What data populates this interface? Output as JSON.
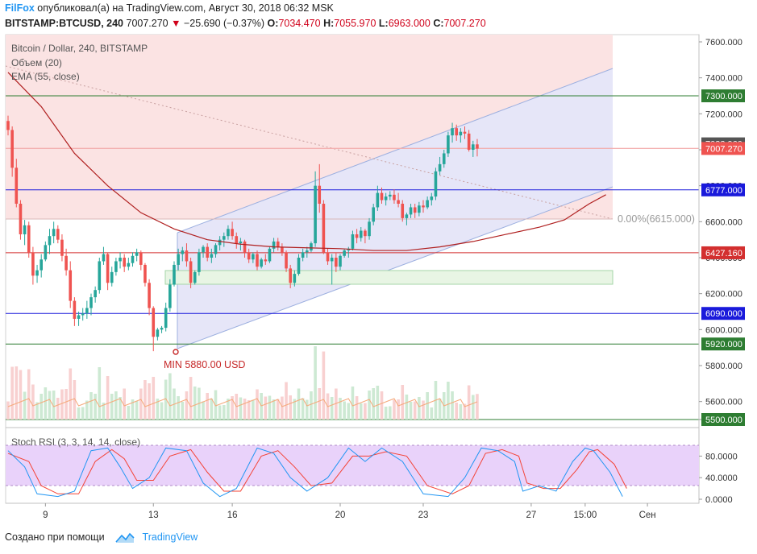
{
  "header": {
    "author": "FilFox",
    "published": "опубликовал(а) на TradingView.com, Август 30, 2018 06:32 MSK",
    "symbol": "BITSTAMP:BTCUSD, 240",
    "last": "7007.270",
    "change": "−25.690 (−0.37%)",
    "o_label": "O:",
    "o": "7034.470",
    "h_label": "H:",
    "h": "7055.970",
    "l_label": "L:",
    "l": "6963.000",
    "c_label": "C:",
    "c": "7007.270"
  },
  "footer": {
    "made_with": "Создано при помощи",
    "brand": "TradingView"
  },
  "colors": {
    "up": "#26a69a",
    "down": "#ef5350",
    "ema": "#b02020",
    "channel": "#b3bde8",
    "stoch_k": "#2196f3",
    "stoch_d": "#f44336"
  },
  "chart_data": {
    "type": "candlestick",
    "title": "Bitcoin / Dollar, 240, BITSTAMP",
    "indicators": [
      "Объем (20)",
      "EMA (55, close)"
    ],
    "y_ticks": [
      "7600.000",
      "7400.000",
      "7200.000",
      "7000.000",
      "6800.000",
      "6600.000",
      "6400.000",
      "6200.000",
      "6000.000",
      "5800.000",
      "5600.000",
      "5500.000"
    ],
    "y_range": [
      5480,
      7640
    ],
    "x_ticks": [
      {
        "label": "9",
        "bar": 9
      },
      {
        "label": "13",
        "bar": 35
      },
      {
        "label": "16",
        "bar": 54
      },
      {
        "label": "20",
        "bar": 80
      },
      {
        "label": "23",
        "bar": 100
      },
      {
        "label": "27",
        "bar": 126
      },
      {
        "label": "15:00",
        "bar": 139
      },
      {
        "label": "Сен",
        "bar": 154
      }
    ],
    "ohlc": [
      [
        7160,
        7190,
        7080,
        7110
      ],
      [
        7110,
        7130,
        6850,
        6900
      ],
      [
        6900,
        6950,
        6680,
        6700
      ],
      [
        6700,
        6720,
        6500,
        6530
      ],
      [
        6530,
        6610,
        6470,
        6580
      ],
      [
        6580,
        6600,
        6400,
        6430
      ],
      [
        6430,
        6460,
        6250,
        6300
      ],
      [
        6300,
        6360,
        6260,
        6330
      ],
      [
        6330,
        6420,
        6290,
        6390
      ],
      [
        6390,
        6490,
        6380,
        6470
      ],
      [
        6470,
        6560,
        6420,
        6520
      ],
      [
        6520,
        6600,
        6480,
        6560
      ],
      [
        6560,
        6580,
        6480,
        6500
      ],
      [
        6500,
        6530,
        6380,
        6410
      ],
      [
        6410,
        6450,
        6300,
        6330
      ],
      [
        6330,
        6380,
        6120,
        6160
      ],
      [
        6160,
        6180,
        6020,
        6060
      ],
      [
        6060,
        6100,
        6020,
        6080
      ],
      [
        6080,
        6120,
        6050,
        6090
      ],
      [
        6090,
        6160,
        6060,
        6120
      ],
      [
        6120,
        6200,
        6080,
        6180
      ],
      [
        6180,
        6240,
        6150,
        6220
      ],
      [
        6220,
        6400,
        6200,
        6380
      ],
      [
        6380,
        6460,
        6360,
        6420
      ],
      [
        6420,
        6430,
        6220,
        6260
      ],
      [
        6260,
        6350,
        6240,
        6320
      ],
      [
        6320,
        6400,
        6300,
        6380
      ],
      [
        6380,
        6430,
        6340,
        6400
      ],
      [
        6400,
        6420,
        6320,
        6350
      ],
      [
        6350,
        6400,
        6330,
        6370
      ],
      [
        6370,
        6430,
        6350,
        6410
      ],
      [
        6410,
        6450,
        6380,
        6430
      ],
      [
        6430,
        6440,
        6330,
        6360
      ],
      [
        6360,
        6370,
        6240,
        6260
      ],
      [
        6260,
        6280,
        6080,
        6120
      ],
      [
        6120,
        6130,
        5880,
        5960
      ],
      [
        5960,
        6010,
        5940,
        6000
      ],
      [
        6000,
        6020,
        5980,
        6010
      ],
      [
        6010,
        6150,
        5990,
        6120
      ],
      [
        6120,
        6280,
        6100,
        6250
      ],
      [
        6250,
        6380,
        6240,
        6360
      ],
      [
        6360,
        6450,
        6330,
        6420
      ],
      [
        6420,
        6460,
        6380,
        6440
      ],
      [
        6440,
        6480,
        6350,
        6380
      ],
      [
        6380,
        6400,
        6230,
        6260
      ],
      [
        6260,
        6330,
        6250,
        6320
      ],
      [
        6320,
        6450,
        6300,
        6430
      ],
      [
        6430,
        6470,
        6400,
        6460
      ],
      [
        6460,
        6480,
        6380,
        6400
      ],
      [
        6400,
        6450,
        6370,
        6420
      ],
      [
        6420,
        6480,
        6400,
        6470
      ],
      [
        6470,
        6520,
        6440,
        6500
      ],
      [
        6500,
        6540,
        6460,
        6520
      ],
      [
        6520,
        6580,
        6500,
        6560
      ],
      [
        6560,
        6600,
        6500,
        6520
      ],
      [
        6520,
        6540,
        6450,
        6480
      ],
      [
        6480,
        6510,
        6440,
        6490
      ],
      [
        6490,
        6500,
        6400,
        6430
      ],
      [
        6430,
        6450,
        6370,
        6390
      ],
      [
        6390,
        6430,
        6370,
        6420
      ],
      [
        6420,
        6440,
        6330,
        6350
      ],
      [
        6350,
        6400,
        6340,
        6390
      ],
      [
        6390,
        6420,
        6360,
        6380
      ],
      [
        6380,
        6460,
        6370,
        6450
      ],
      [
        6450,
        6510,
        6430,
        6490
      ],
      [
        6490,
        6510,
        6440,
        6460
      ],
      [
        6460,
        6480,
        6410,
        6430
      ],
      [
        6430,
        6440,
        6320,
        6340
      ],
      [
        6340,
        6360,
        6230,
        6260
      ],
      [
        6260,
        6330,
        6240,
        6310
      ],
      [
        6310,
        6420,
        6300,
        6400
      ],
      [
        6400,
        6450,
        6380,
        6430
      ],
      [
        6430,
        6460,
        6400,
        6440
      ],
      [
        6440,
        6490,
        6430,
        6480
      ],
      [
        6480,
        6880,
        6460,
        6800
      ],
      [
        6800,
        6920,
        6650,
        6700
      ],
      [
        6700,
        6720,
        6420,
        6430
      ],
      [
        6430,
        6450,
        6360,
        6380
      ],
      [
        6380,
        6420,
        6250,
        6400
      ],
      [
        6400,
        6430,
        6320,
        6350
      ],
      [
        6350,
        6420,
        6330,
        6410
      ],
      [
        6410,
        6450,
        6400,
        6440
      ],
      [
        6440,
        6460,
        6400,
        6450
      ],
      [
        6450,
        6550,
        6440,
        6530
      ],
      [
        6530,
        6560,
        6480,
        6510
      ],
      [
        6510,
        6570,
        6490,
        6550
      ],
      [
        6550,
        6560,
        6480,
        6520
      ],
      [
        6520,
        6620,
        6500,
        6600
      ],
      [
        6600,
        6700,
        6580,
        6680
      ],
      [
        6680,
        6800,
        6660,
        6760
      ],
      [
        6760,
        6790,
        6700,
        6720
      ],
      [
        6720,
        6760,
        6690,
        6740
      ],
      [
        6740,
        6770,
        6720,
        6750
      ],
      [
        6750,
        6780,
        6700,
        6720
      ],
      [
        6720,
        6760,
        6680,
        6700
      ],
      [
        6700,
        6720,
        6600,
        6620
      ],
      [
        6620,
        6650,
        6580,
        6640
      ],
      [
        6640,
        6700,
        6620,
        6680
      ],
      [
        6680,
        6700,
        6620,
        6650
      ],
      [
        6650,
        6710,
        6630,
        6690
      ],
      [
        6690,
        6720,
        6650,
        6680
      ],
      [
        6680,
        6740,
        6670,
        6720
      ],
      [
        6720,
        6760,
        6690,
        6740
      ],
      [
        6740,
        6900,
        6720,
        6880
      ],
      [
        6880,
        6960,
        6860,
        6920
      ],
      [
        6920,
        7000,
        6900,
        6980
      ],
      [
        6980,
        7100,
        6960,
        7080
      ],
      [
        7080,
        7150,
        7040,
        7120
      ],
      [
        7120,
        7140,
        7050,
        7080
      ],
      [
        7080,
        7120,
        7040,
        7100
      ],
      [
        7100,
        7130,
        7060,
        7090
      ],
      [
        7090,
        7110,
        6990,
        7000
      ],
      [
        7000,
        7050,
        6960,
        7030
      ],
      [
        7030,
        7060,
        6963,
        7007
      ]
    ],
    "ema55": [
      [
        0,
        7430
      ],
      [
        8,
        7240
      ],
      [
        16,
        6980
      ],
      [
        24,
        6800
      ],
      [
        32,
        6650
      ],
      [
        40,
        6560
      ],
      [
        48,
        6500
      ],
      [
        56,
        6475
      ],
      [
        64,
        6460
      ],
      [
        72,
        6455
      ],
      [
        80,
        6450
      ],
      [
        88,
        6440
      ],
      [
        96,
        6440
      ],
      [
        104,
        6460
      ],
      [
        112,
        6490
      ],
      [
        120,
        6530
      ],
      [
        128,
        6570
      ],
      [
        134,
        6610
      ],
      [
        140,
        6700
      ],
      [
        144,
        6750
      ]
    ],
    "levels": [
      {
        "price": 7300,
        "label": "7300.000",
        "color": "#2e7d32",
        "box": "#2e7d32"
      },
      {
        "price": 7032.96,
        "label": "7032.960",
        "color": "#b0b0b0",
        "box": "#555555"
      },
      {
        "price": 7007.27,
        "label": "7007.270",
        "color": "#ef5350",
        "box": "#ef5350"
      },
      {
        "price": 6777,
        "label": "6777.000",
        "color": "#1a1adb",
        "box": "#1a1adb"
      },
      {
        "price": 6427.16,
        "label": "6427.160",
        "color": "#d32f2f",
        "box": "#d32f2f"
      },
      {
        "price": 6090,
        "label": "6090.000",
        "color": "#1a1adb",
        "box": "#1a1adb"
      },
      {
        "price": 5920,
        "label": "5920.000",
        "color": "#2e7d32",
        "box": "#2e7d32"
      },
      {
        "price": 5500,
        "label": "5500.000",
        "color": "#2e7d32",
        "box": "#2e7d32"
      }
    ],
    "fib_label": "0.00%(6615.000)",
    "min_label": "MIN 5880.00 USD",
    "stoch": {
      "label": "Stoch RSI (3, 3, 14, 14, close)",
      "y_ticks": [
        "80.0000",
        "40.0000",
        "0.0000"
      ],
      "band": [
        20,
        80
      ],
      "k": [
        [
          0,
          90
        ],
        [
          4,
          60
        ],
        [
          7,
          10
        ],
        [
          12,
          5
        ],
        [
          16,
          15
        ],
        [
          20,
          90
        ],
        [
          24,
          95
        ],
        [
          27,
          60
        ],
        [
          30,
          20
        ],
        [
          34,
          40
        ],
        [
          38,
          95
        ],
        [
          43,
          90
        ],
        [
          47,
          30
        ],
        [
          51,
          5
        ],
        [
          55,
          20
        ],
        [
          60,
          95
        ],
        [
          64,
          85
        ],
        [
          68,
          40
        ],
        [
          72,
          15
        ],
        [
          77,
          40
        ],
        [
          82,
          95
        ],
        [
          86,
          70
        ],
        [
          90,
          95
        ],
        [
          95,
          70
        ],
        [
          100,
          10
        ],
        [
          106,
          5
        ],
        [
          110,
          40
        ],
        [
          114,
          95
        ],
        [
          118,
          90
        ],
        [
          122,
          70
        ],
        [
          124,
          15
        ],
        [
          128,
          25
        ],
        [
          132,
          15
        ],
        [
          136,
          70
        ],
        [
          139,
          95
        ],
        [
          141,
          90
        ],
        [
          145,
          50
        ],
        [
          148,
          5
        ]
      ],
      "d": [
        [
          0,
          85
        ],
        [
          5,
          70
        ],
        [
          8,
          25
        ],
        [
          12,
          10
        ],
        [
          17,
          10
        ],
        [
          21,
          70
        ],
        [
          25,
          92
        ],
        [
          28,
          75
        ],
        [
          31,
          35
        ],
        [
          35,
          35
        ],
        [
          39,
          80
        ],
        [
          44,
          92
        ],
        [
          48,
          50
        ],
        [
          52,
          15
        ],
        [
          56,
          15
        ],
        [
          61,
          80
        ],
        [
          65,
          90
        ],
        [
          69,
          60
        ],
        [
          73,
          25
        ],
        [
          78,
          30
        ],
        [
          83,
          80
        ],
        [
          87,
          80
        ],
        [
          91,
          88
        ],
        [
          96,
          80
        ],
        [
          101,
          25
        ],
        [
          107,
          10
        ],
        [
          111,
          25
        ],
        [
          115,
          85
        ],
        [
          119,
          92
        ],
        [
          123,
          80
        ],
        [
          125,
          30
        ],
        [
          129,
          20
        ],
        [
          133,
          20
        ],
        [
          137,
          55
        ],
        [
          140,
          88
        ],
        [
          142,
          92
        ],
        [
          146,
          65
        ],
        [
          149,
          20
        ]
      ]
    }
  }
}
